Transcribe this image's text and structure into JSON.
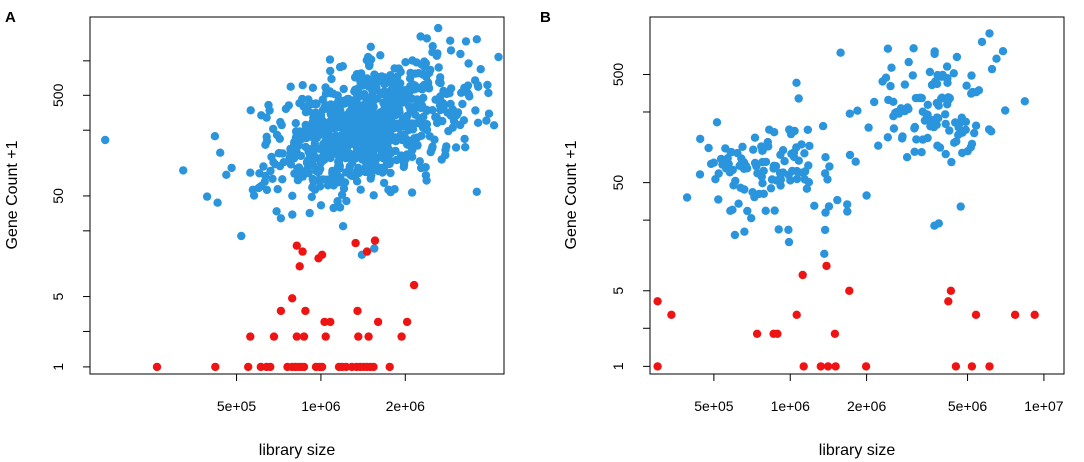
{
  "colors": {
    "detected": "#2a95dc",
    "low": "#ee1414"
  },
  "chart_data": [
    {
      "type": "scatter",
      "panel_label": "A",
      "title": "",
      "xlabel": "library size",
      "ylabel": "Gene Count +1",
      "x_scale": "log",
      "y_scale": "log",
      "xlim": [
        150000,
        4500000
      ],
      "ylim": [
        0.85,
        3000
      ],
      "x_ticks": [
        {
          "value": 500000,
          "label": "5e+05"
        },
        {
          "value": 1000000,
          "label": "1e+06"
        },
        {
          "value": 2000000,
          "label": "2e+06"
        }
      ],
      "y_ticks": [
        {
          "value": 1,
          "label": "1"
        },
        {
          "value": 5,
          "label": "5"
        },
        {
          "value": 50,
          "label": "50"
        },
        {
          "value": 500,
          "label": "500"
        }
      ],
      "y_minor_ticks": [
        2.25,
        22.5,
        225,
        1100
      ],
      "series": [
        {
          "name": "blue",
          "color": "#2a95dc",
          "n_points": 900,
          "cluster": {
            "x_center": 1450000,
            "x_log_sd": 0.17,
            "y_center": 240,
            "y_log_sd": 0.28,
            "xy_slope": 0.9
          },
          "points": [
            [
              170000,
              180
            ],
            [
              480000,
              95
            ],
            [
              520000,
              20
            ],
            [
              560000,
              85
            ],
            [
              600000,
              60
            ],
            [
              640000,
              300
            ],
            [
              650000,
              400
            ],
            [
              720000,
              30
            ],
            [
              3600000,
              55
            ],
            [
              4300000,
              1200
            ],
            [
              3600000,
              1800
            ],
            [
              1200000,
              25
            ],
            [
              1550000,
              15
            ],
            [
              1400000,
              13
            ]
          ]
        },
        {
          "name": "red",
          "color": "#ee1414",
          "n_points": 58,
          "points": [
            [
              260000,
              1
            ],
            [
              420000,
              1
            ],
            [
              550000,
              1
            ],
            [
              610000,
              1
            ],
            [
              640000,
              1
            ],
            [
              660000,
              1
            ],
            [
              760000,
              1
            ],
            [
              790000,
              1
            ],
            [
              810000,
              1
            ],
            [
              830000,
              1
            ],
            [
              850000,
              1
            ],
            [
              870000,
              1
            ],
            [
              960000,
              1
            ],
            [
              990000,
              1
            ],
            [
              1010000,
              1
            ],
            [
              1160000,
              1
            ],
            [
              1190000,
              1
            ],
            [
              1230000,
              1
            ],
            [
              1290000,
              1
            ],
            [
              1340000,
              1
            ],
            [
              1380000,
              1
            ],
            [
              1420000,
              1
            ],
            [
              1460000,
              1
            ],
            [
              1500000,
              1
            ],
            [
              1540000,
              1
            ],
            [
              1760000,
              1
            ],
            [
              560000,
              2
            ],
            [
              680000,
              2
            ],
            [
              820000,
              2
            ],
            [
              870000,
              2
            ],
            [
              1040000,
              2
            ],
            [
              1360000,
              2
            ],
            [
              1480000,
              2
            ],
            [
              1940000,
              2
            ],
            [
              1030000,
              2.8
            ],
            [
              1080000,
              2.8
            ],
            [
              1600000,
              2.8
            ],
            [
              2030000,
              2.8
            ],
            [
              720000,
              3.6
            ],
            [
              880000,
              3.6
            ],
            [
              1350000,
              3.6
            ],
            [
              790000,
              4.8
            ],
            [
              2150000,
              6.5
            ],
            [
              840000,
              10
            ],
            [
              860000,
              14
            ],
            [
              820000,
              16
            ],
            [
              980000,
              12
            ],
            [
              1010000,
              13
            ],
            [
              1330000,
              17
            ],
            [
              1460000,
              14
            ],
            [
              1560000,
              18
            ]
          ]
        }
      ]
    },
    {
      "type": "scatter",
      "panel_label": "B",
      "title": "",
      "xlabel": "library size",
      "ylabel": "Gene Count +1",
      "x_scale": "log",
      "y_scale": "log",
      "xlim": [
        280000,
        12000000
      ],
      "ylim": [
        0.85,
        1700
      ],
      "x_ticks": [
        {
          "value": 500000,
          "label": "5e+05"
        },
        {
          "value": 1000000,
          "label": "1e+06"
        },
        {
          "value": 2000000,
          "label": "2e+06"
        },
        {
          "value": 5000000,
          "label": "5e+06"
        },
        {
          "value": 10000000,
          "label": "1e+07"
        }
      ],
      "y_ticks": [
        {
          "value": 1,
          "label": "1"
        },
        {
          "value": 5,
          "label": "5"
        },
        {
          "value": 50,
          "label": "50"
        },
        {
          "value": 500,
          "label": "500"
        }
      ],
      "y_minor_ticks": [
        2.25,
        22.5,
        225
      ],
      "series": [
        {
          "name": "blue",
          "color": "#2a95dc",
          "n_points": 230,
          "clusters": [
            {
              "n": 120,
              "x_center": 780000,
              "x_log_sd": 0.14,
              "y_center": 60,
              "y_log_sd": 0.24
            },
            {
              "n": 110,
              "x_center": 3500000,
              "x_log_sd": 0.13,
              "y_center": 240,
              "y_log_sd": 0.23
            }
          ],
          "points": [
            [
              2000000,
              38
            ],
            [
              1720000,
              90
            ],
            [
              1080000,
              300
            ],
            [
              6100000,
              1200
            ],
            [
              6500000,
              700
            ],
            [
              6900000,
              820
            ],
            [
              5700000,
              1000
            ],
            [
              3700000,
              20
            ],
            [
              3850000,
              21
            ],
            [
              4700000,
              30
            ]
          ]
        },
        {
          "name": "red",
          "color": "#ee1414",
          "n_points": 31,
          "points": [
            [
              300000,
              1
            ],
            [
              300000,
              4
            ],
            [
              340000,
              3
            ],
            [
              740000,
              2
            ],
            [
              860000,
              2
            ],
            [
              890000,
              2
            ],
            [
              1130000,
              1
            ],
            [
              1320000,
              1
            ],
            [
              1410000,
              1
            ],
            [
              1510000,
              1
            ],
            [
              1500000,
              2
            ],
            [
              1060000,
              3
            ],
            [
              1120000,
              7
            ],
            [
              1390000,
              8.5
            ],
            [
              1710000,
              5
            ],
            [
              1990000,
              1
            ],
            [
              4200000,
              4
            ],
            [
              4300000,
              5
            ],
            [
              4500000,
              1
            ],
            [
              5200000,
              1
            ],
            [
              5400000,
              3
            ],
            [
              6100000,
              1
            ],
            [
              7700000,
              3
            ],
            [
              9200000,
              3
            ]
          ]
        }
      ]
    }
  ]
}
